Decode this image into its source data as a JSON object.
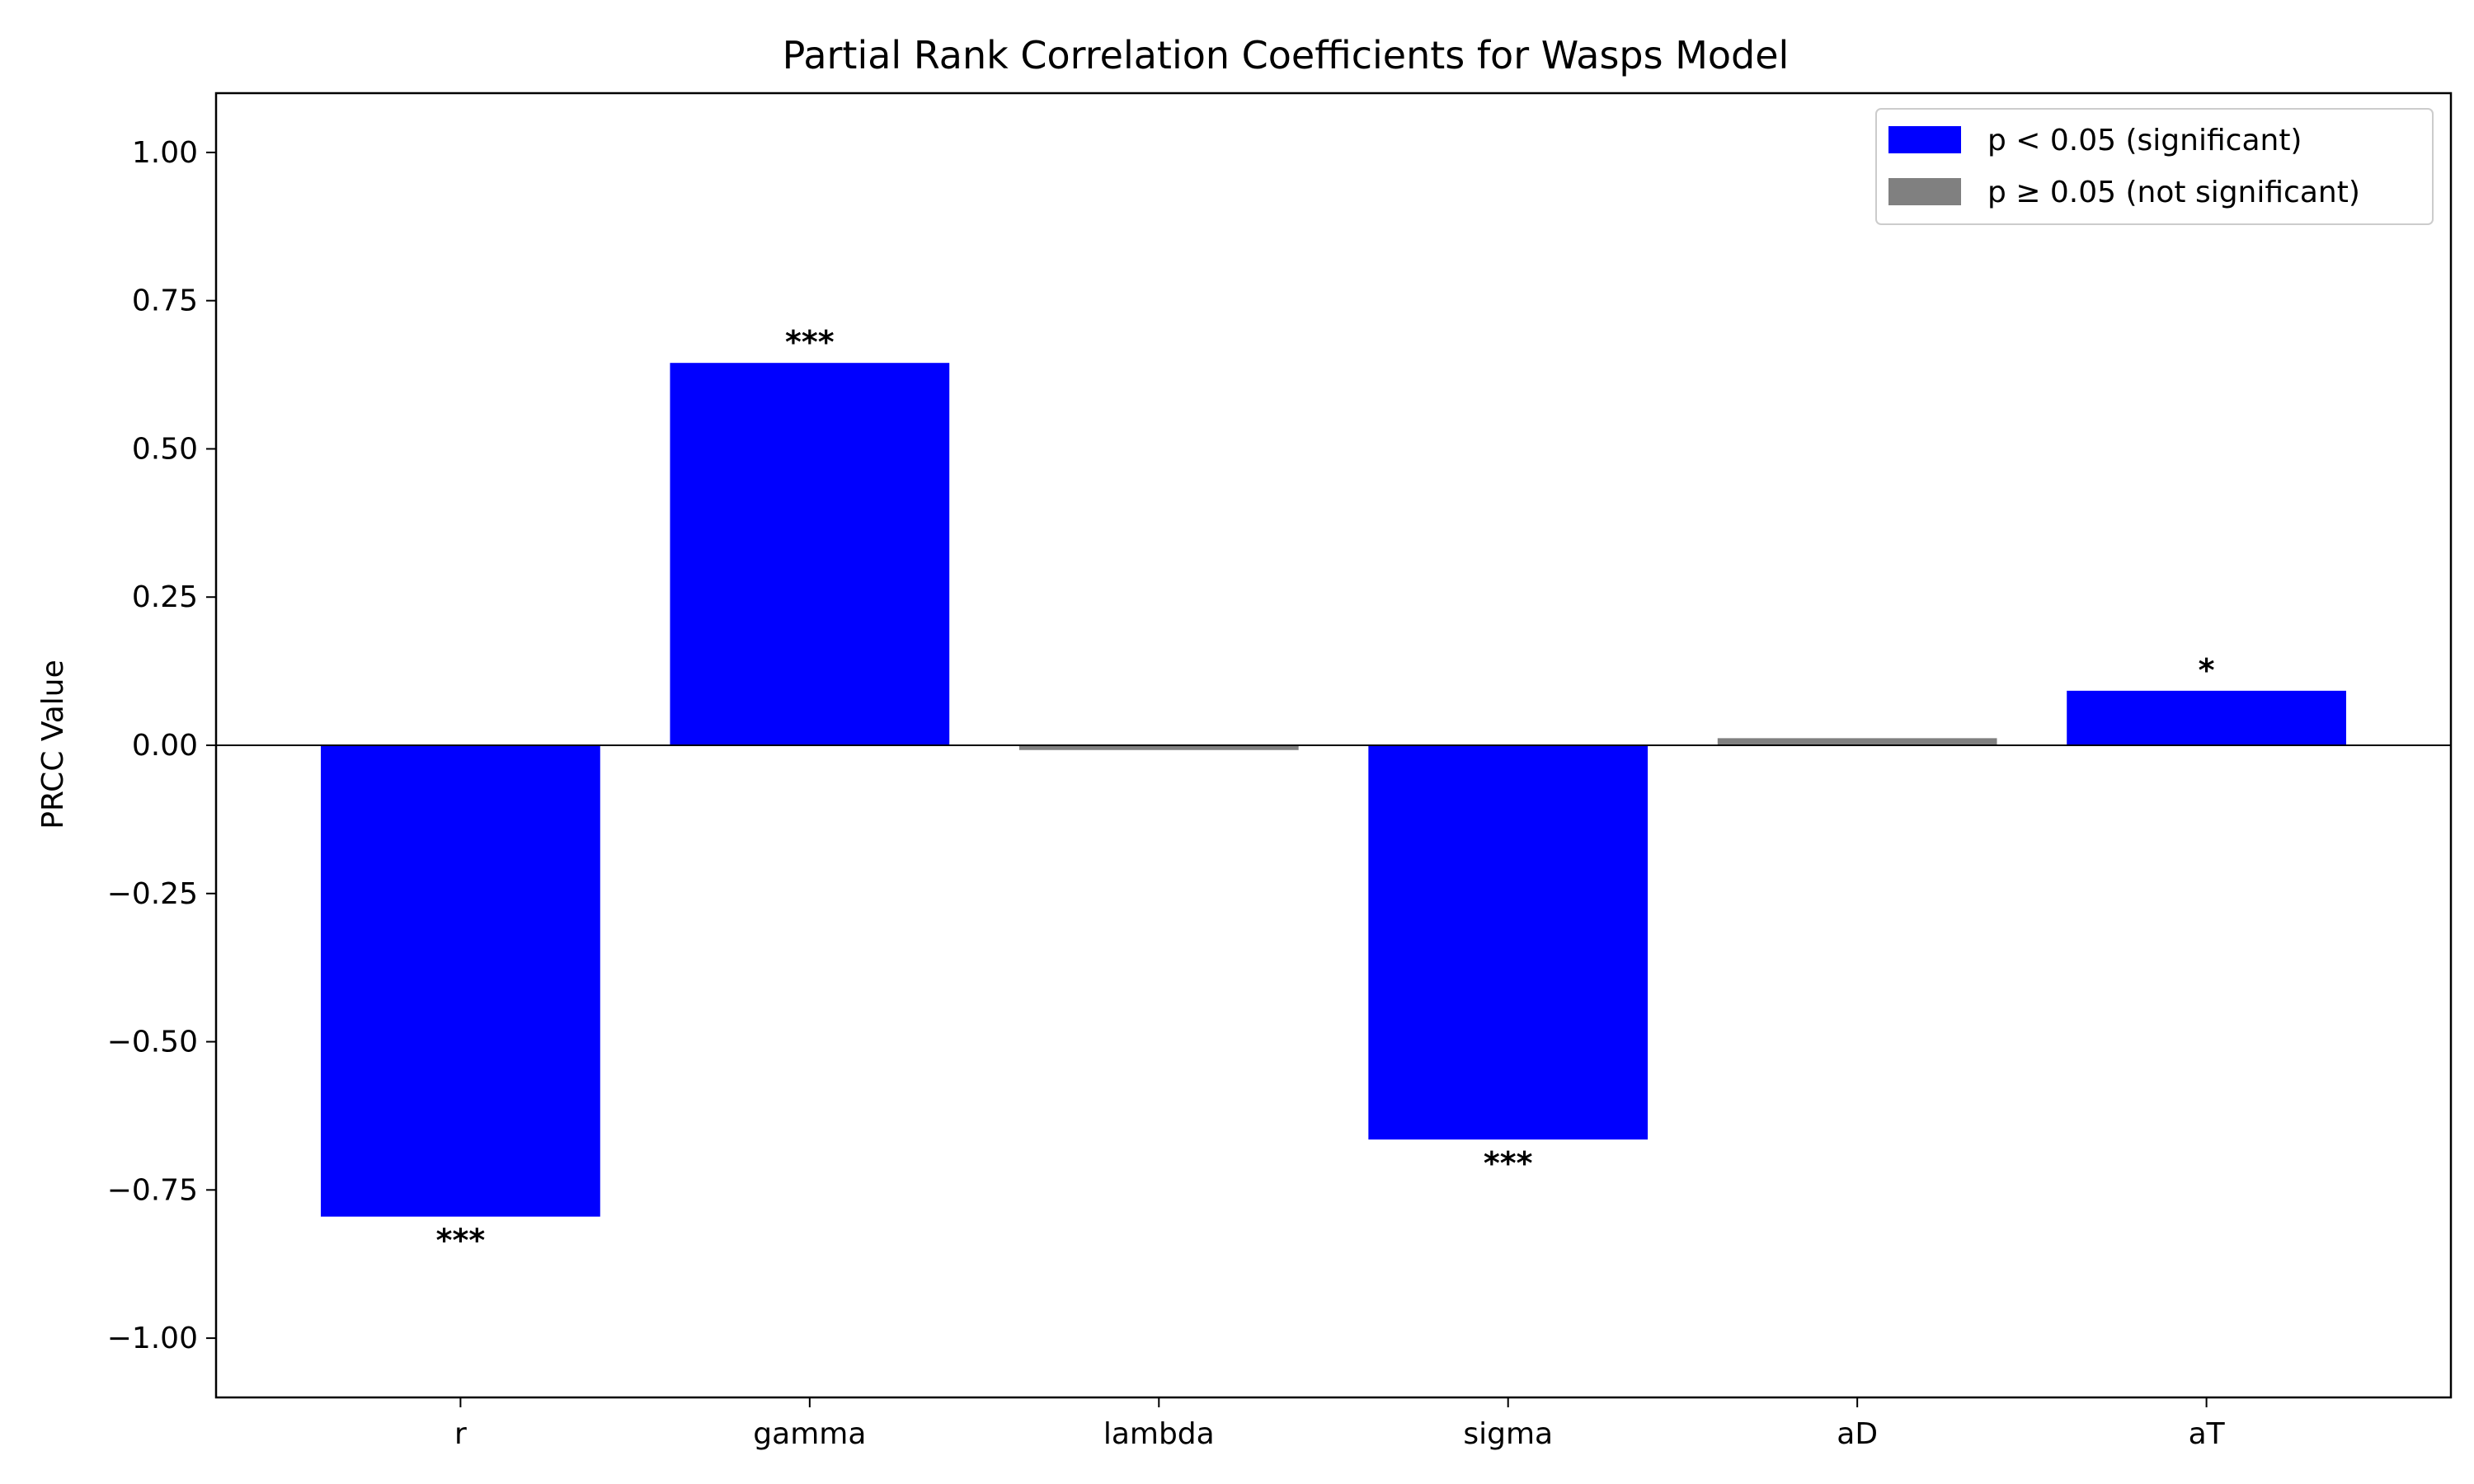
{
  "chart_data": {
    "type": "bar",
    "title": "Partial Rank Correlation Coefficients for Wasps Model",
    "xlabel": "",
    "ylabel": "PRCC Value",
    "ylim": [
      -1.1,
      1.1
    ],
    "yticks": [
      1.0,
      0.75,
      0.5,
      0.25,
      0.0,
      -0.25,
      -0.5,
      -0.75,
      -1.0
    ],
    "ytick_labels": [
      "1.00",
      "0.75",
      "0.50",
      "0.25",
      "0.00",
      "−0.25",
      "−0.50",
      "−0.75",
      "−1.00"
    ],
    "categories": [
      "r",
      "gamma",
      "lambda",
      "sigma",
      "aD",
      "aT"
    ],
    "values": [
      -0.795,
      0.645,
      -0.008,
      -0.665,
      0.012,
      0.092
    ],
    "significant": [
      true,
      true,
      false,
      true,
      false,
      true
    ],
    "annotations": [
      "***",
      "***",
      "",
      "***",
      "",
      "*"
    ],
    "grid": false,
    "legend": {
      "placement": "top-right",
      "entries": [
        {
          "label": "p < 0.05 (significant)",
          "color": "#0000ff"
        },
        {
          "label": "p ≥ 0.05 (not significant)",
          "color": "#808080"
        }
      ]
    },
    "colors": {
      "significant": "#0000ff",
      "not_significant": "#808080"
    }
  }
}
